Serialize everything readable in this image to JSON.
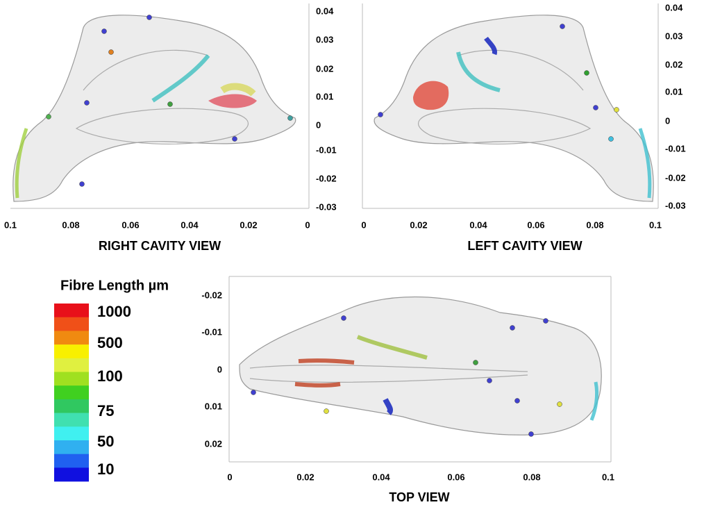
{
  "panels": [
    {
      "title": "RIGHT CAVITY VIEW",
      "x_ticks": [
        "0.1",
        "0.08",
        "0.06",
        "0.04",
        "0.02",
        "0"
      ],
      "y_ticks": [
        "0.04",
        "0.03",
        "0.02",
        "0.01",
        "0",
        "-0.01",
        "-0.02",
        "-0.03"
      ]
    },
    {
      "title": "LEFT CAVITY VIEW",
      "x_ticks": [
        "0",
        "0.02",
        "0.04",
        "0.06",
        "0.08",
        "0.1"
      ],
      "y_ticks": [
        "0.04",
        "0.03",
        "0.02",
        "0.01",
        "0",
        "-0.01",
        "-0.02",
        "-0.03"
      ]
    },
    {
      "title": "TOP VIEW",
      "x_ticks": [
        "0",
        "0.02",
        "0.04",
        "0.06",
        "0.08",
        "0.1"
      ],
      "y_ticks": [
        "-0.02",
        "-0.01",
        "0",
        "0.01",
        "0.02"
      ]
    }
  ],
  "colorbar": {
    "title": "Fibre Length µm",
    "labels": [
      "1000",
      "500",
      "100",
      "75",
      "50",
      "10"
    ]
  }
}
